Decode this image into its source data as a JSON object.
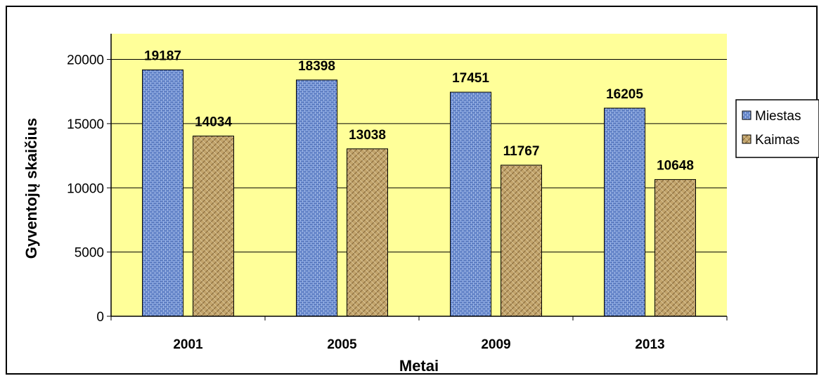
{
  "chart_data": {
    "type": "bar",
    "title": "",
    "xlabel": "Metai",
    "ylabel": "Gyventojų skaičius",
    "categories": [
      "2001",
      "2005",
      "2009",
      "2013"
    ],
    "series": [
      {
        "name": "Miestas",
        "values": [
          19187,
          18398,
          17451,
          16205
        ],
        "color": "#6d8fd0"
      },
      {
        "name": "Kaimas",
        "values": [
          14034,
          13038,
          11767,
          10648
        ],
        "color": "#b89a62"
      }
    ],
    "ylim": [
      0,
      22000
    ],
    "yticks": [
      0,
      5000,
      10000,
      15000,
      20000
    ],
    "grid": true,
    "data_labels": true,
    "legend": "right",
    "plot_background": "#ffff99"
  }
}
